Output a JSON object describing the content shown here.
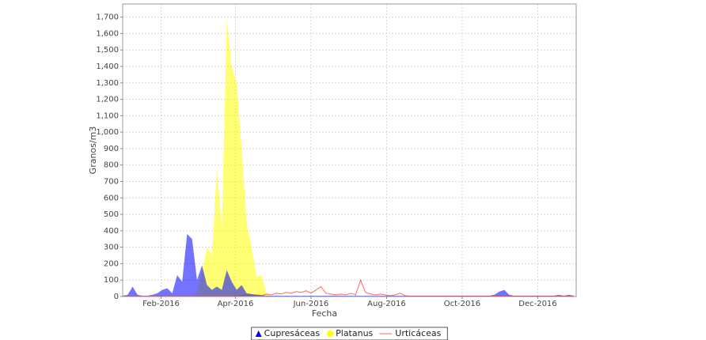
{
  "chart_data": {
    "type": "area",
    "x_label": "Fecha",
    "y_label": "Granos/m3",
    "x": [
      0,
      4,
      8,
      12,
      16,
      20,
      24,
      28,
      32,
      36,
      40,
      44,
      48,
      52,
      56,
      60,
      64,
      68,
      72,
      76,
      80,
      84,
      88,
      92,
      96,
      100,
      104,
      108,
      112,
      116,
      120,
      124,
      128,
      132,
      136,
      140,
      144,
      148,
      152,
      156,
      160,
      164,
      168,
      172,
      176,
      180,
      184,
      188,
      192,
      196,
      200,
      204,
      208,
      212,
      216,
      220,
      224,
      228,
      232,
      236,
      240,
      244,
      248,
      252,
      256,
      260,
      264,
      268,
      272,
      276,
      280,
      284,
      288,
      292,
      296,
      300,
      304,
      308,
      312,
      316,
      320,
      324,
      328,
      332,
      336,
      340,
      344,
      348,
      352,
      356,
      360,
      364
    ],
    "xlim": [
      0,
      366
    ],
    "xticks": [
      {
        "value": 31,
        "label": "Feb-2016"
      },
      {
        "value": 91,
        "label": "Apr-2016"
      },
      {
        "value": 152,
        "label": "Jun-2016"
      },
      {
        "value": 213,
        "label": "Aug-2016"
      },
      {
        "value": 274,
        "label": "Oct-2016"
      },
      {
        "value": 335,
        "label": "Dec-2016"
      }
    ],
    "ylim": [
      0,
      1780
    ],
    "yticks": [
      0,
      100,
      200,
      300,
      400,
      500,
      600,
      700,
      800,
      900,
      {
        "value": 1000,
        "label": "1,000"
      },
      {
        "value": 1100,
        "label": "1,100"
      },
      {
        "value": 1200,
        "label": "1,200"
      },
      {
        "value": 1300,
        "label": "1,300"
      },
      {
        "value": 1400,
        "label": "1,400"
      },
      {
        "value": 1500,
        "label": "1,500"
      },
      {
        "value": 1600,
        "label": "1,600"
      },
      {
        "value": 1700,
        "label": "1,700"
      }
    ],
    "grid": true,
    "series": [
      {
        "name": "Cupresáceas",
        "color": "#0000ff",
        "style": "area",
        "values": [
          5,
          10,
          60,
          10,
          5,
          5,
          10,
          20,
          40,
          50,
          20,
          130,
          90,
          380,
          350,
          100,
          190,
          70,
          40,
          60,
          40,
          160,
          90,
          40,
          70,
          20,
          15,
          10,
          8,
          5,
          5,
          5,
          5,
          5,
          5,
          5,
          5,
          5,
          5,
          5,
          5,
          5,
          5,
          5,
          5,
          5,
          5,
          5,
          5,
          5,
          5,
          5,
          5,
          5,
          5,
          5,
          5,
          5,
          5,
          5,
          5,
          5,
          5,
          5,
          5,
          5,
          5,
          5,
          5,
          5,
          5,
          5,
          5,
          5,
          5,
          10,
          30,
          40,
          10,
          5,
          5,
          5,
          5,
          5,
          5,
          5,
          5,
          5,
          10,
          5,
          10,
          5
        ]
      },
      {
        "name": "Platanus",
        "color": "#ffff00",
        "style": "area",
        "values": [
          0,
          0,
          0,
          0,
          0,
          0,
          0,
          0,
          0,
          0,
          0,
          0,
          0,
          0,
          0,
          20,
          150,
          300,
          250,
          780,
          420,
          1680,
          1400,
          1300,
          900,
          450,
          300,
          120,
          130,
          20,
          0,
          0,
          0,
          0,
          0,
          0,
          0,
          0,
          0,
          0,
          0,
          0,
          0,
          0,
          0,
          0,
          0,
          0,
          0,
          0,
          0,
          0,
          0,
          0,
          0,
          0,
          0,
          0,
          0,
          0,
          0,
          0,
          0,
          0,
          0,
          0,
          0,
          0,
          0,
          0,
          0,
          0,
          0,
          0,
          0,
          0,
          0,
          0,
          0,
          0,
          0,
          0,
          0,
          0,
          0,
          0,
          0,
          0,
          0,
          0,
          0,
          0
        ]
      },
      {
        "name": "Urticáceas",
        "color": "#ff0000",
        "style": "line",
        "values": [
          2,
          2,
          2,
          2,
          2,
          2,
          2,
          2,
          2,
          2,
          2,
          2,
          2,
          2,
          2,
          2,
          2,
          2,
          2,
          2,
          2,
          2,
          2,
          2,
          5,
          10,
          5,
          10,
          5,
          15,
          10,
          20,
          15,
          25,
          20,
          30,
          25,
          35,
          20,
          40,
          60,
          20,
          15,
          10,
          15,
          10,
          20,
          10,
          100,
          25,
          15,
          10,
          15,
          10,
          5,
          10,
          20,
          5,
          3,
          3,
          3,
          3,
          3,
          3,
          3,
          3,
          3,
          3,
          3,
          3,
          3,
          3,
          3,
          3,
          3,
          3,
          3,
          3,
          3,
          3,
          3,
          3,
          3,
          3,
          3,
          3,
          3,
          3,
          3,
          3,
          3,
          3
        ]
      }
    ]
  }
}
